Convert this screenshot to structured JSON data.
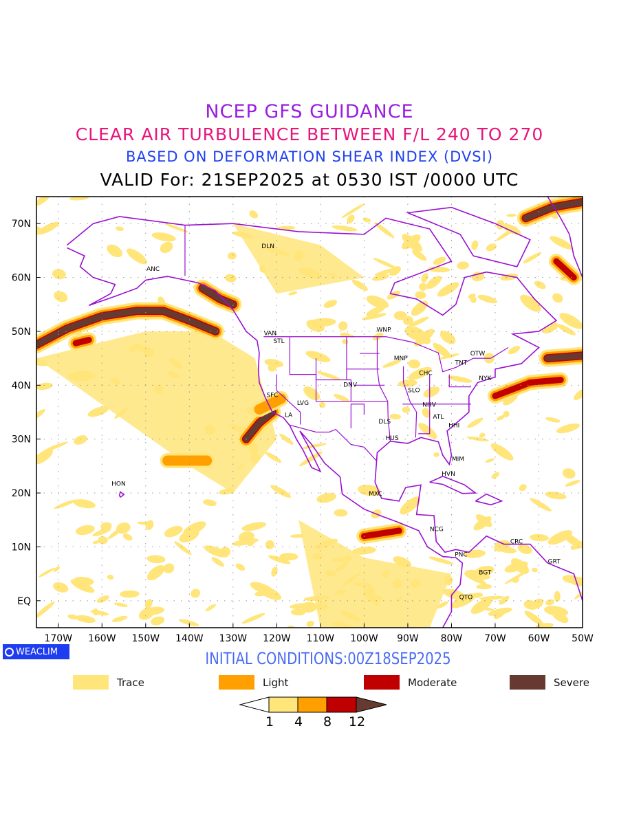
{
  "titles": {
    "line1": "NCEP GFS GUIDANCE",
    "line2": "CLEAR AIR TURBULENCE BETWEEN F/L 240 TO 270",
    "line3": "BASED ON DEFORMATION SHEAR INDEX (DVSI)",
    "line4": "VALID For: 21SEP2025 at 0530 IST /0000 UTC"
  },
  "logo": "WEACLIM",
  "initial_conditions": "INITIAL CONDITIONS:00Z18SEP2025",
  "map": {
    "lon_range": [
      -175,
      -50
    ],
    "lat_range": [
      -5,
      75
    ],
    "x_ticks": [
      {
        "lon": -170,
        "label": "170W"
      },
      {
        "lon": -160,
        "label": "160W"
      },
      {
        "lon": -150,
        "label": "150W"
      },
      {
        "lon": -140,
        "label": "140W"
      },
      {
        "lon": -130,
        "label": "130W"
      },
      {
        "lon": -120,
        "label": "120W"
      },
      {
        "lon": -110,
        "label": "110W"
      },
      {
        "lon": -100,
        "label": "100W"
      },
      {
        "lon": -90,
        "label": "90W"
      },
      {
        "lon": -80,
        "label": "80W"
      },
      {
        "lon": -70,
        "label": "70W"
      },
      {
        "lon": -60,
        "label": "60W"
      },
      {
        "lon": -50,
        "label": "50W"
      }
    ],
    "y_ticks": [
      {
        "lat": 70,
        "label": "70N"
      },
      {
        "lat": 60,
        "label": "60N"
      },
      {
        "lat": 50,
        "label": "50N"
      },
      {
        "lat": 40,
        "label": "40N"
      },
      {
        "lat": 30,
        "label": "30N"
      },
      {
        "lat": 20,
        "label": "20N"
      },
      {
        "lat": 10,
        "label": "10N"
      },
      {
        "lat": 0,
        "label": "EQ"
      }
    ],
    "cities": [
      {
        "code": "DLN",
        "lon": -122,
        "lat": 65.8
      },
      {
        "code": "ANC",
        "lon": -148.3,
        "lat": 61.6
      },
      {
        "code": "VAN",
        "lon": -121.5,
        "lat": 49.7
      },
      {
        "code": "STL",
        "lon": -119.5,
        "lat": 48.2
      },
      {
        "code": "SFC",
        "lon": -121,
        "lat": 38.2
      },
      {
        "code": "LVG",
        "lon": -114,
        "lat": 36.7
      },
      {
        "code": "LA",
        "lon": -117.3,
        "lat": 34.5
      },
      {
        "code": "DNV",
        "lon": -103.2,
        "lat": 40.1
      },
      {
        "code": "WNP",
        "lon": -95.5,
        "lat": 50.3
      },
      {
        "code": "MNP",
        "lon": -91.6,
        "lat": 45
      },
      {
        "code": "CHC",
        "lon": -85.9,
        "lat": 42.3
      },
      {
        "code": "TNT",
        "lon": -77.8,
        "lat": 44.2
      },
      {
        "code": "OTW",
        "lon": -74,
        "lat": 45.9
      },
      {
        "code": "NYK",
        "lon": -72.3,
        "lat": 41.3
      },
      {
        "code": "SLO",
        "lon": -88.6,
        "lat": 39.1
      },
      {
        "code": "NHV",
        "lon": -85.1,
        "lat": 36.4
      },
      {
        "code": "ATL",
        "lon": -83,
        "lat": 34.2
      },
      {
        "code": "HHI",
        "lon": -79.4,
        "lat": 32.6
      },
      {
        "code": "DLS",
        "lon": -95.3,
        "lat": 33.3
      },
      {
        "code": "HUS",
        "lon": -93.6,
        "lat": 30.2
      },
      {
        "code": "MIM",
        "lon": -78.5,
        "lat": 26.3
      },
      {
        "code": "HVN",
        "lon": -80.7,
        "lat": 23.6
      },
      {
        "code": "MXC",
        "lon": -97.4,
        "lat": 19.9
      },
      {
        "code": "NCG",
        "lon": -83.4,
        "lat": 13.3
      },
      {
        "code": "PNC",
        "lon": -77.8,
        "lat": 8.6
      },
      {
        "code": "BGT",
        "lon": -72.3,
        "lat": 5.3
      },
      {
        "code": "CRC",
        "lon": -65.1,
        "lat": 11
      },
      {
        "code": "GRT",
        "lon": -56.5,
        "lat": 7.3
      },
      {
        "code": "QTO",
        "lon": -76.7,
        "lat": 0.7
      },
      {
        "code": "HON",
        "lon": -156.2,
        "lat": 21.7
      }
    ],
    "turbulence_features": [
      {
        "category": "severe",
        "points": [
          [
            -175,
            47.5
          ],
          [
            -168,
            50.5
          ],
          [
            -160,
            52.8
          ],
          [
            -152,
            53.8
          ],
          [
            -146,
            53.8
          ],
          [
            -140,
            52
          ],
          [
            -134,
            50
          ]
        ]
      },
      {
        "category": "moderate",
        "points": [
          [
            -166,
            47.8
          ],
          [
            -163,
            48.4
          ]
        ]
      },
      {
        "category": "severe",
        "points": [
          [
            -127,
            30
          ],
          [
            -124,
            33
          ],
          [
            -121,
            35
          ]
        ]
      },
      {
        "category": "light",
        "points": [
          [
            -124,
            35.5
          ],
          [
            -119,
            37.5
          ]
        ]
      },
      {
        "category": "severe",
        "points": [
          [
            -137,
            58
          ],
          [
            -133,
            56
          ],
          [
            -130,
            55
          ]
        ]
      },
      {
        "category": "moderate",
        "points": [
          [
            -70,
            38
          ],
          [
            -62,
            40.5
          ],
          [
            -55,
            41
          ]
        ]
      },
      {
        "category": "severe",
        "points": [
          [
            -58,
            45
          ],
          [
            -50,
            45.5
          ]
        ]
      },
      {
        "category": "severe",
        "points": [
          [
            -63,
            71
          ],
          [
            -57,
            73
          ],
          [
            -50,
            74
          ]
        ]
      },
      {
        "category": "moderate",
        "points": [
          [
            -56,
            63
          ],
          [
            -52,
            60
          ]
        ]
      },
      {
        "category": "light",
        "points": [
          [
            -145,
            26
          ],
          [
            -136,
            26
          ]
        ]
      },
      {
        "category": "moderate",
        "points": [
          [
            -100,
            12
          ],
          [
            -92,
            13
          ]
        ]
      }
    ]
  },
  "legend": [
    {
      "label": "Trace",
      "color": "#ffe57a"
    },
    {
      "label": "Light",
      "color": "#ffa000"
    },
    {
      "label": "Moderate",
      "color": "#c00000"
    },
    {
      "label": "Severe",
      "color": "#663a30"
    }
  ],
  "colorbar": {
    "levels": [
      "1",
      "4",
      "8",
      "12"
    ],
    "colors": [
      "#ffffff",
      "#ffe57a",
      "#ffa000",
      "#c00000",
      "#663a30"
    ]
  },
  "colors": {
    "border": "#9a10d0"
  }
}
